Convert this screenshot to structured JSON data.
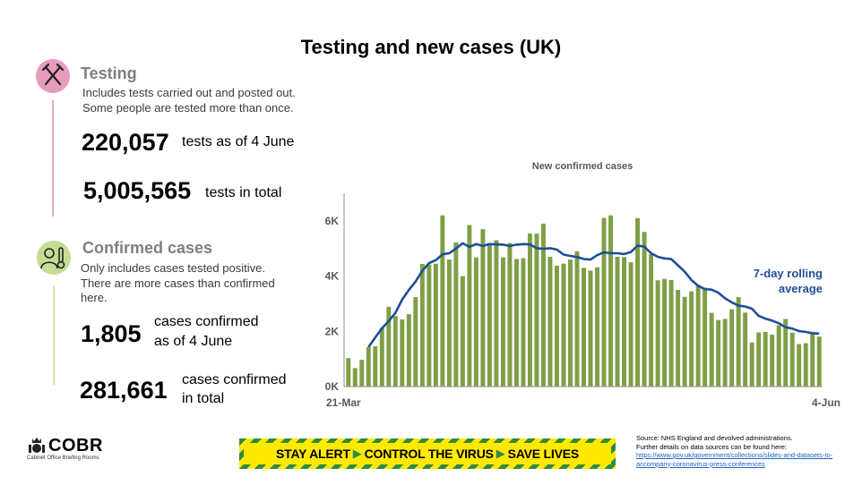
{
  "title": "Testing and new cases (UK)",
  "testing": {
    "heading": "Testing",
    "note1": "Includes tests carried out and posted out.",
    "note2": "Some people are tested more than once.",
    "daily_value": "220,057",
    "daily_label": "tests as of 4 June",
    "total_value": "5,005,565",
    "total_label": "tests in total",
    "icon": "test-tubes-icon"
  },
  "cases": {
    "heading": "Confirmed cases",
    "note1": "Only includes cases tested positive.",
    "note2": "There are more cases than confirmed",
    "note3": "here.",
    "daily_value": "1,805",
    "daily_label1": "cases confirmed",
    "daily_label2": "as of 4 June",
    "total_value": "281,661",
    "total_label1": "cases confirmed",
    "total_label2": "in total",
    "icon": "thermometer-person-icon"
  },
  "chart_data": {
    "type": "bar",
    "title": "New confirmed cases",
    "x_start_label": "21-Mar",
    "x_end_label": "4-Jun",
    "ylim": [
      0,
      7000
    ],
    "yticks": [
      0,
      2000,
      4000,
      6000
    ],
    "ytick_labels": [
      "0K",
      "2K",
      "4K",
      "6K"
    ],
    "bar_color": "#7f9f47",
    "line_color": "#1f4e99",
    "values": [
      1030,
      670,
      970,
      1430,
      1460,
      2130,
      2890,
      2550,
      2430,
      2620,
      3240,
      4440,
      4420,
      4450,
      6200,
      4600,
      5220,
      4000,
      5850,
      4680,
      5700,
      5200,
      5300,
      4680,
      5200,
      4620,
      4650,
      5540,
      5540,
      5900,
      4700,
      4380,
      4450,
      4600,
      4900,
      4300,
      4200,
      4320,
      6110,
      6200,
      4700,
      4690,
      4500,
      6100,
      5600,
      4800,
      3850,
      3900,
      3860,
      3500,
      3250,
      3450,
      3680,
      3580,
      2670,
      2410,
      2450,
      2800,
      3240,
      2680,
      1600,
      1960,
      1980,
      1880,
      2220,
      2450,
      1950,
      1540,
      1570,
      1980,
      1810
    ],
    "series": [
      {
        "name": "7-day rolling average",
        "label1": "7-day rolling",
        "label2": "average",
        "start_index": 3,
        "values": [
          1430,
          1780,
          2110,
          2370,
          2670,
          3150,
          3500,
          3800,
          4190,
          4470,
          4580,
          4790,
          4830,
          5000,
          5190,
          5060,
          5160,
          5090,
          5160,
          5150,
          5140,
          5090,
          5140,
          5160,
          5150,
          5010,
          4990,
          5010,
          4960,
          4780,
          4730,
          4690,
          4620,
          4600,
          4760,
          4860,
          4830,
          4830,
          4800,
          4870,
          5100,
          5070,
          4830,
          4700,
          4640,
          4620,
          4390,
          4160,
          3860,
          3650,
          3530,
          3510,
          3400,
          3200,
          3050,
          2930,
          2900,
          2820,
          2560,
          2460,
          2390,
          2290,
          2150,
          2100,
          2010,
          1980,
          1930,
          1920
        ]
      }
    ]
  },
  "banner": {
    "part1": "STAY ALERT",
    "part2": "CONTROL THE VIRUS",
    "part3": "SAVE LIVES"
  },
  "source": {
    "line1": "Source: NHS England and devolved administrations.",
    "line2": "Further details on data sources can be found here:",
    "link1": "https://www.gov.uk/government/collections/slides-and-datasets-to-",
    "link2": "accompany-coronavirus-press-conferences"
  },
  "logo": {
    "word": "COBR",
    "subtitle": "Cabinet Office Briefing Rooms",
    "icon": "royal-crest-icon"
  }
}
